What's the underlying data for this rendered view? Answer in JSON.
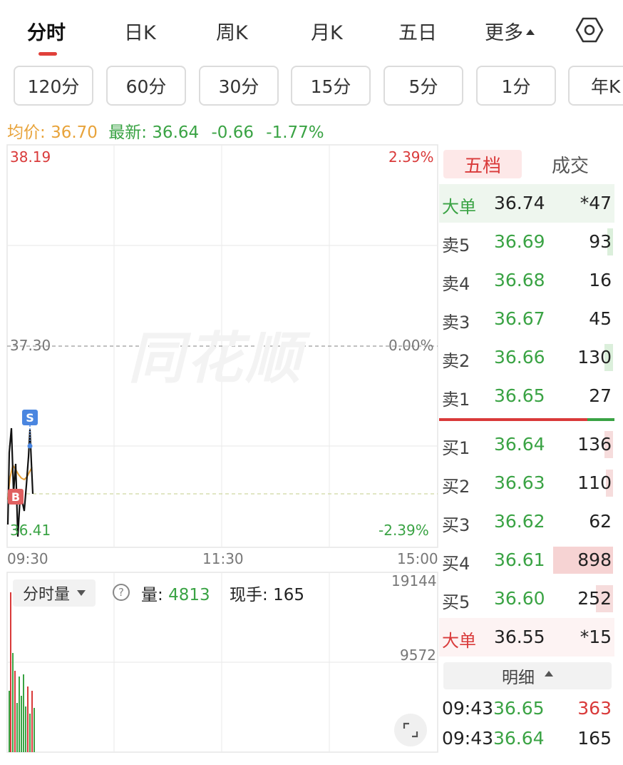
{
  "tabs": [
    {
      "label": "分时",
      "active": true
    },
    {
      "label": "日K"
    },
    {
      "label": "周K"
    },
    {
      "label": "月K"
    },
    {
      "label": "五日"
    },
    {
      "label": "更多"
    }
  ],
  "settings_icon": "hexagon-gear-icon",
  "minute_chips": [
    "120分",
    "60分",
    "30分",
    "15分",
    "5分",
    "1分",
    "年K"
  ],
  "info": {
    "avg_label": "均价:",
    "avg_value": "36.70",
    "latest_label": "最新:",
    "latest_value": "36.64",
    "change": "-0.66",
    "change_pct": "-1.77%"
  },
  "chart": {
    "price_high": "38.19",
    "pct_high": "2.39%",
    "price_mid": "37.30",
    "pct_mid": "0.00%",
    "price_low": "36.41",
    "pct_low": "-2.39%",
    "time_start": "09:30",
    "time_mid": "11:30",
    "time_end": "15:00",
    "watermark": "同花顺",
    "marker_s": "S",
    "marker_b": "B",
    "colors": {
      "up": "#d93a3a",
      "down": "#3aa344",
      "avg": "#e8a33a",
      "price": "#111111"
    }
  },
  "chart_data": {
    "type": "line",
    "title": "",
    "ylim": [
      36.41,
      38.19
    ],
    "series": [],
    "minutes_shown": 13
  },
  "volume": {
    "type_label": "分时量",
    "help_icon": "question-circle-icon",
    "vol_label": "量:",
    "vol_value": "4813",
    "hand_label": "现手:",
    "hand_value": "165",
    "axis_top": "19144",
    "axis_mid": "9572",
    "expand_icon": "expand-corners-icon"
  },
  "orderbook": {
    "tab_active": "五档",
    "tab_inactive": "成交",
    "big_sell": {
      "label": "大单",
      "price": "36.74",
      "vol": "*47"
    },
    "asks": [
      {
        "label": "卖5",
        "price": "36.69",
        "vol": "93",
        "bar_frac": 0.1
      },
      {
        "label": "卖4",
        "price": "36.68",
        "vol": "16",
        "bar_frac": 0.0
      },
      {
        "label": "卖3",
        "price": "36.67",
        "vol": "45",
        "bar_frac": 0.0
      },
      {
        "label": "卖2",
        "price": "36.66",
        "vol": "130",
        "bar_frac": 0.14
      },
      {
        "label": "卖1",
        "price": "36.65",
        "vol": "27",
        "bar_frac": 0.0
      }
    ],
    "bids": [
      {
        "label": "买1",
        "price": "36.64",
        "vol": "136",
        "bar_frac": 0.14
      },
      {
        "label": "买2",
        "price": "36.63",
        "vol": "110",
        "bar_frac": 0.12
      },
      {
        "label": "买3",
        "price": "36.62",
        "vol": "62",
        "bar_frac": 0.0
      },
      {
        "label": "买4",
        "price": "36.61",
        "vol": "898",
        "bar_frac": 1.0
      },
      {
        "label": "买5",
        "price": "36.60",
        "vol": "252",
        "bar_frac": 0.28
      }
    ],
    "big_buy": {
      "label": "大单",
      "price": "36.55",
      "vol": "*15"
    },
    "detail_label": "明细",
    "ticks": [
      {
        "time": "09:43",
        "price": "36.65",
        "vol": "363",
        "color": "#d93a3a"
      },
      {
        "time": "09:43",
        "price": "36.64",
        "vol": "165",
        "color": "#222222"
      }
    ]
  }
}
